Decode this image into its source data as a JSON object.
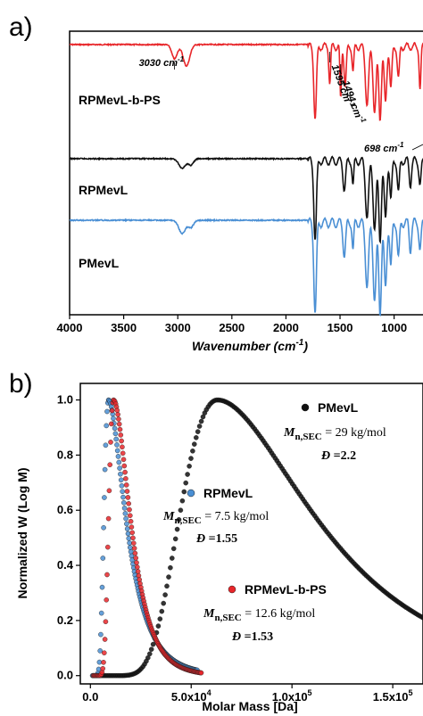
{
  "chart_data": [
    {
      "panel": "a)",
      "type": "line",
      "xlabel": "Wavenumber (cm",
      "xlabel_sup": "-1",
      "xlabel_tail": ")",
      "xlim": [
        4000,
        700
      ],
      "x_ticks": [
        4000,
        3500,
        3000,
        2500,
        2000,
        1500,
        1000
      ],
      "y_ticks": false,
      "series": [
        {
          "name": "RPMevL-b-PS",
          "color": "#e8262a",
          "peaks": [
            {
              "x": 3030,
              "depth": 0.2,
              "width": 25
            },
            {
              "x": 2920,
              "depth": 0.3,
              "width": 30
            },
            {
              "x": 1730,
              "depth": 1.0,
              "width": 12
            },
            {
              "x": 1595,
              "depth": 0.5,
              "width": 8
            },
            {
              "x": 1494,
              "depth": 0.75,
              "width": 7
            },
            {
              "x": 1452,
              "depth": 0.55,
              "width": 10
            },
            {
              "x": 1380,
              "depth": 0.35,
              "width": 8
            },
            {
              "x": 1250,
              "depth": 0.8,
              "width": 15
            },
            {
              "x": 1180,
              "depth": 0.9,
              "width": 14
            },
            {
              "x": 1130,
              "depth": 1.0,
              "width": 12
            },
            {
              "x": 1080,
              "depth": 0.8,
              "width": 12
            },
            {
              "x": 1030,
              "depth": 0.6,
              "width": 10
            },
            {
              "x": 960,
              "depth": 0.45,
              "width": 10
            },
            {
              "x": 760,
              "depth": 0.6,
              "width": 8
            },
            {
              "x": 698,
              "depth": 0.85,
              "width": 8
            }
          ]
        },
        {
          "name": "RPMevL",
          "color": "#111111",
          "peaks": [
            {
              "x": 2960,
              "depth": 0.12,
              "width": 30
            },
            {
              "x": 2880,
              "depth": 0.08,
              "width": 25
            },
            {
              "x": 1730,
              "depth": 1.0,
              "width": 12
            },
            {
              "x": 1460,
              "depth": 0.35,
              "width": 12
            },
            {
              "x": 1380,
              "depth": 0.3,
              "width": 8
            },
            {
              "x": 1250,
              "depth": 0.7,
              "width": 15
            },
            {
              "x": 1180,
              "depth": 0.85,
              "width": 14
            },
            {
              "x": 1130,
              "depth": 1.0,
              "width": 12
            },
            {
              "x": 1080,
              "depth": 0.75,
              "width": 12
            },
            {
              "x": 1030,
              "depth": 0.5,
              "width": 10
            },
            {
              "x": 960,
              "depth": 0.4,
              "width": 10
            },
            {
              "x": 850,
              "depth": 0.3,
              "width": 10
            },
            {
              "x": 760,
              "depth": 0.3,
              "width": 10
            }
          ]
        },
        {
          "name": "PMevL",
          "color": "#4a8fd4",
          "peaks": [
            {
              "x": 2960,
              "depth": 0.15,
              "width": 30
            },
            {
              "x": 2880,
              "depth": 0.08,
              "width": 25
            },
            {
              "x": 1730,
              "depth": 1.0,
              "width": 12
            },
            {
              "x": 1460,
              "depth": 0.35,
              "width": 12
            },
            {
              "x": 1380,
              "depth": 0.3,
              "width": 8
            },
            {
              "x": 1250,
              "depth": 0.7,
              "width": 15
            },
            {
              "x": 1180,
              "depth": 0.85,
              "width": 14
            },
            {
              "x": 1130,
              "depth": 1.0,
              "width": 12
            },
            {
              "x": 1080,
              "depth": 0.75,
              "width": 12
            },
            {
              "x": 1030,
              "depth": 0.5,
              "width": 10
            },
            {
              "x": 960,
              "depth": 0.4,
              "width": 10
            },
            {
              "x": 850,
              "depth": 0.3,
              "width": 10
            },
            {
              "x": 760,
              "depth": 0.3,
              "width": 10
            }
          ]
        }
      ],
      "annotations": [
        {
          "text": "3030 cm",
          "sup": "-1",
          "x": 3030
        },
        {
          "text": "1595 cm",
          "sup": "-1",
          "x": 1595
        },
        {
          "text": "1494 cm",
          "sup": "-1",
          "x": 1494
        },
        {
          "text": "698 cm",
          "sup": "-1",
          "x": 698
        }
      ]
    },
    {
      "panel": "b)",
      "type": "line",
      "xlabel": "Molar Mass [Da]",
      "ylabel": "Normalized W (Log M)",
      "xlim": [
        -5000,
        165000
      ],
      "ylim": [
        -0.03,
        1.06
      ],
      "x_ticks": [
        "0.0",
        "5.0x10",
        "1.0x10",
        "1.5x10"
      ],
      "x_tick_values": [
        0,
        50000,
        100000,
        150000
      ],
      "x_tick_exp": [
        "",
        "4",
        "5",
        "5"
      ],
      "y_ticks": [
        "0.0",
        "0.2",
        "0.4",
        "0.6",
        "0.8",
        "1.0"
      ],
      "y_tick_values": [
        0,
        0.2,
        0.4,
        0.6,
        0.8,
        1.0
      ],
      "series": [
        {
          "name": "PMevL",
          "color": "#111111",
          "peak_x": 63000,
          "start_x": 3000,
          "end_x": 165000,
          "end_y": 0.21,
          "mn": "= 29 kg/mol",
          "d": "=2.2"
        },
        {
          "name": "RPMevL",
          "color": "#4a8fd4",
          "peak_x": 9000,
          "start_x": 1000,
          "end_x": 53000,
          "end_y": 0.02,
          "mn": "= 7.5 kg/mol",
          "d": "=1.55"
        },
        {
          "name": "RPMevL-b-PS",
          "color": "#e8262a",
          "peak_x": 11500,
          "start_x": 1500,
          "end_x": 55000,
          "end_y": 0.01,
          "mn": "= 12.6 kg/mol",
          "d": "=1.53"
        }
      ],
      "legend_mn_prefix": "M",
      "legend_mn_sub": "n,SEC",
      "legend_d_symbol": "Đ"
    }
  ]
}
